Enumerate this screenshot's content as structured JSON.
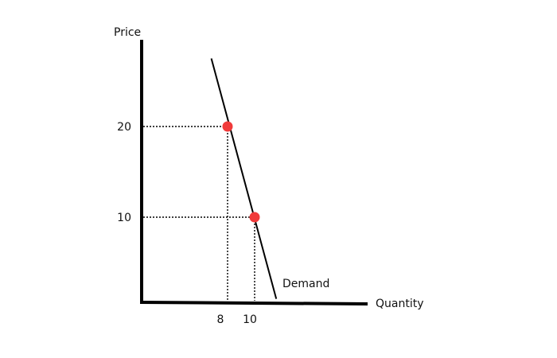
{
  "chart_data": {
    "type": "line",
    "title": "",
    "xlabel": "Quantity",
    "ylabel": "Price",
    "x_ticks": [
      {
        "value": 8,
        "label": "8"
      },
      {
        "value": 10,
        "label": "10"
      }
    ],
    "y_ticks": [
      {
        "value": 10,
        "label": "10"
      },
      {
        "value": 20,
        "label": "20"
      }
    ],
    "series": [
      {
        "name": "Demand",
        "points": [
          {
            "x": 6.8,
            "y": 27.5
          },
          {
            "x": 8,
            "y": 20
          },
          {
            "x": 10,
            "y": 10
          },
          {
            "x": 11.6,
            "y": 1
          }
        ]
      }
    ],
    "highlighted_points": [
      {
        "x": 8,
        "y": 20
      },
      {
        "x": 10,
        "y": 10
      }
    ],
    "colors": {
      "axis": "#000000",
      "demand_line": "#000000",
      "point": "#f03a3a",
      "guide": "#000000"
    },
    "grid": false,
    "legend": "none"
  }
}
